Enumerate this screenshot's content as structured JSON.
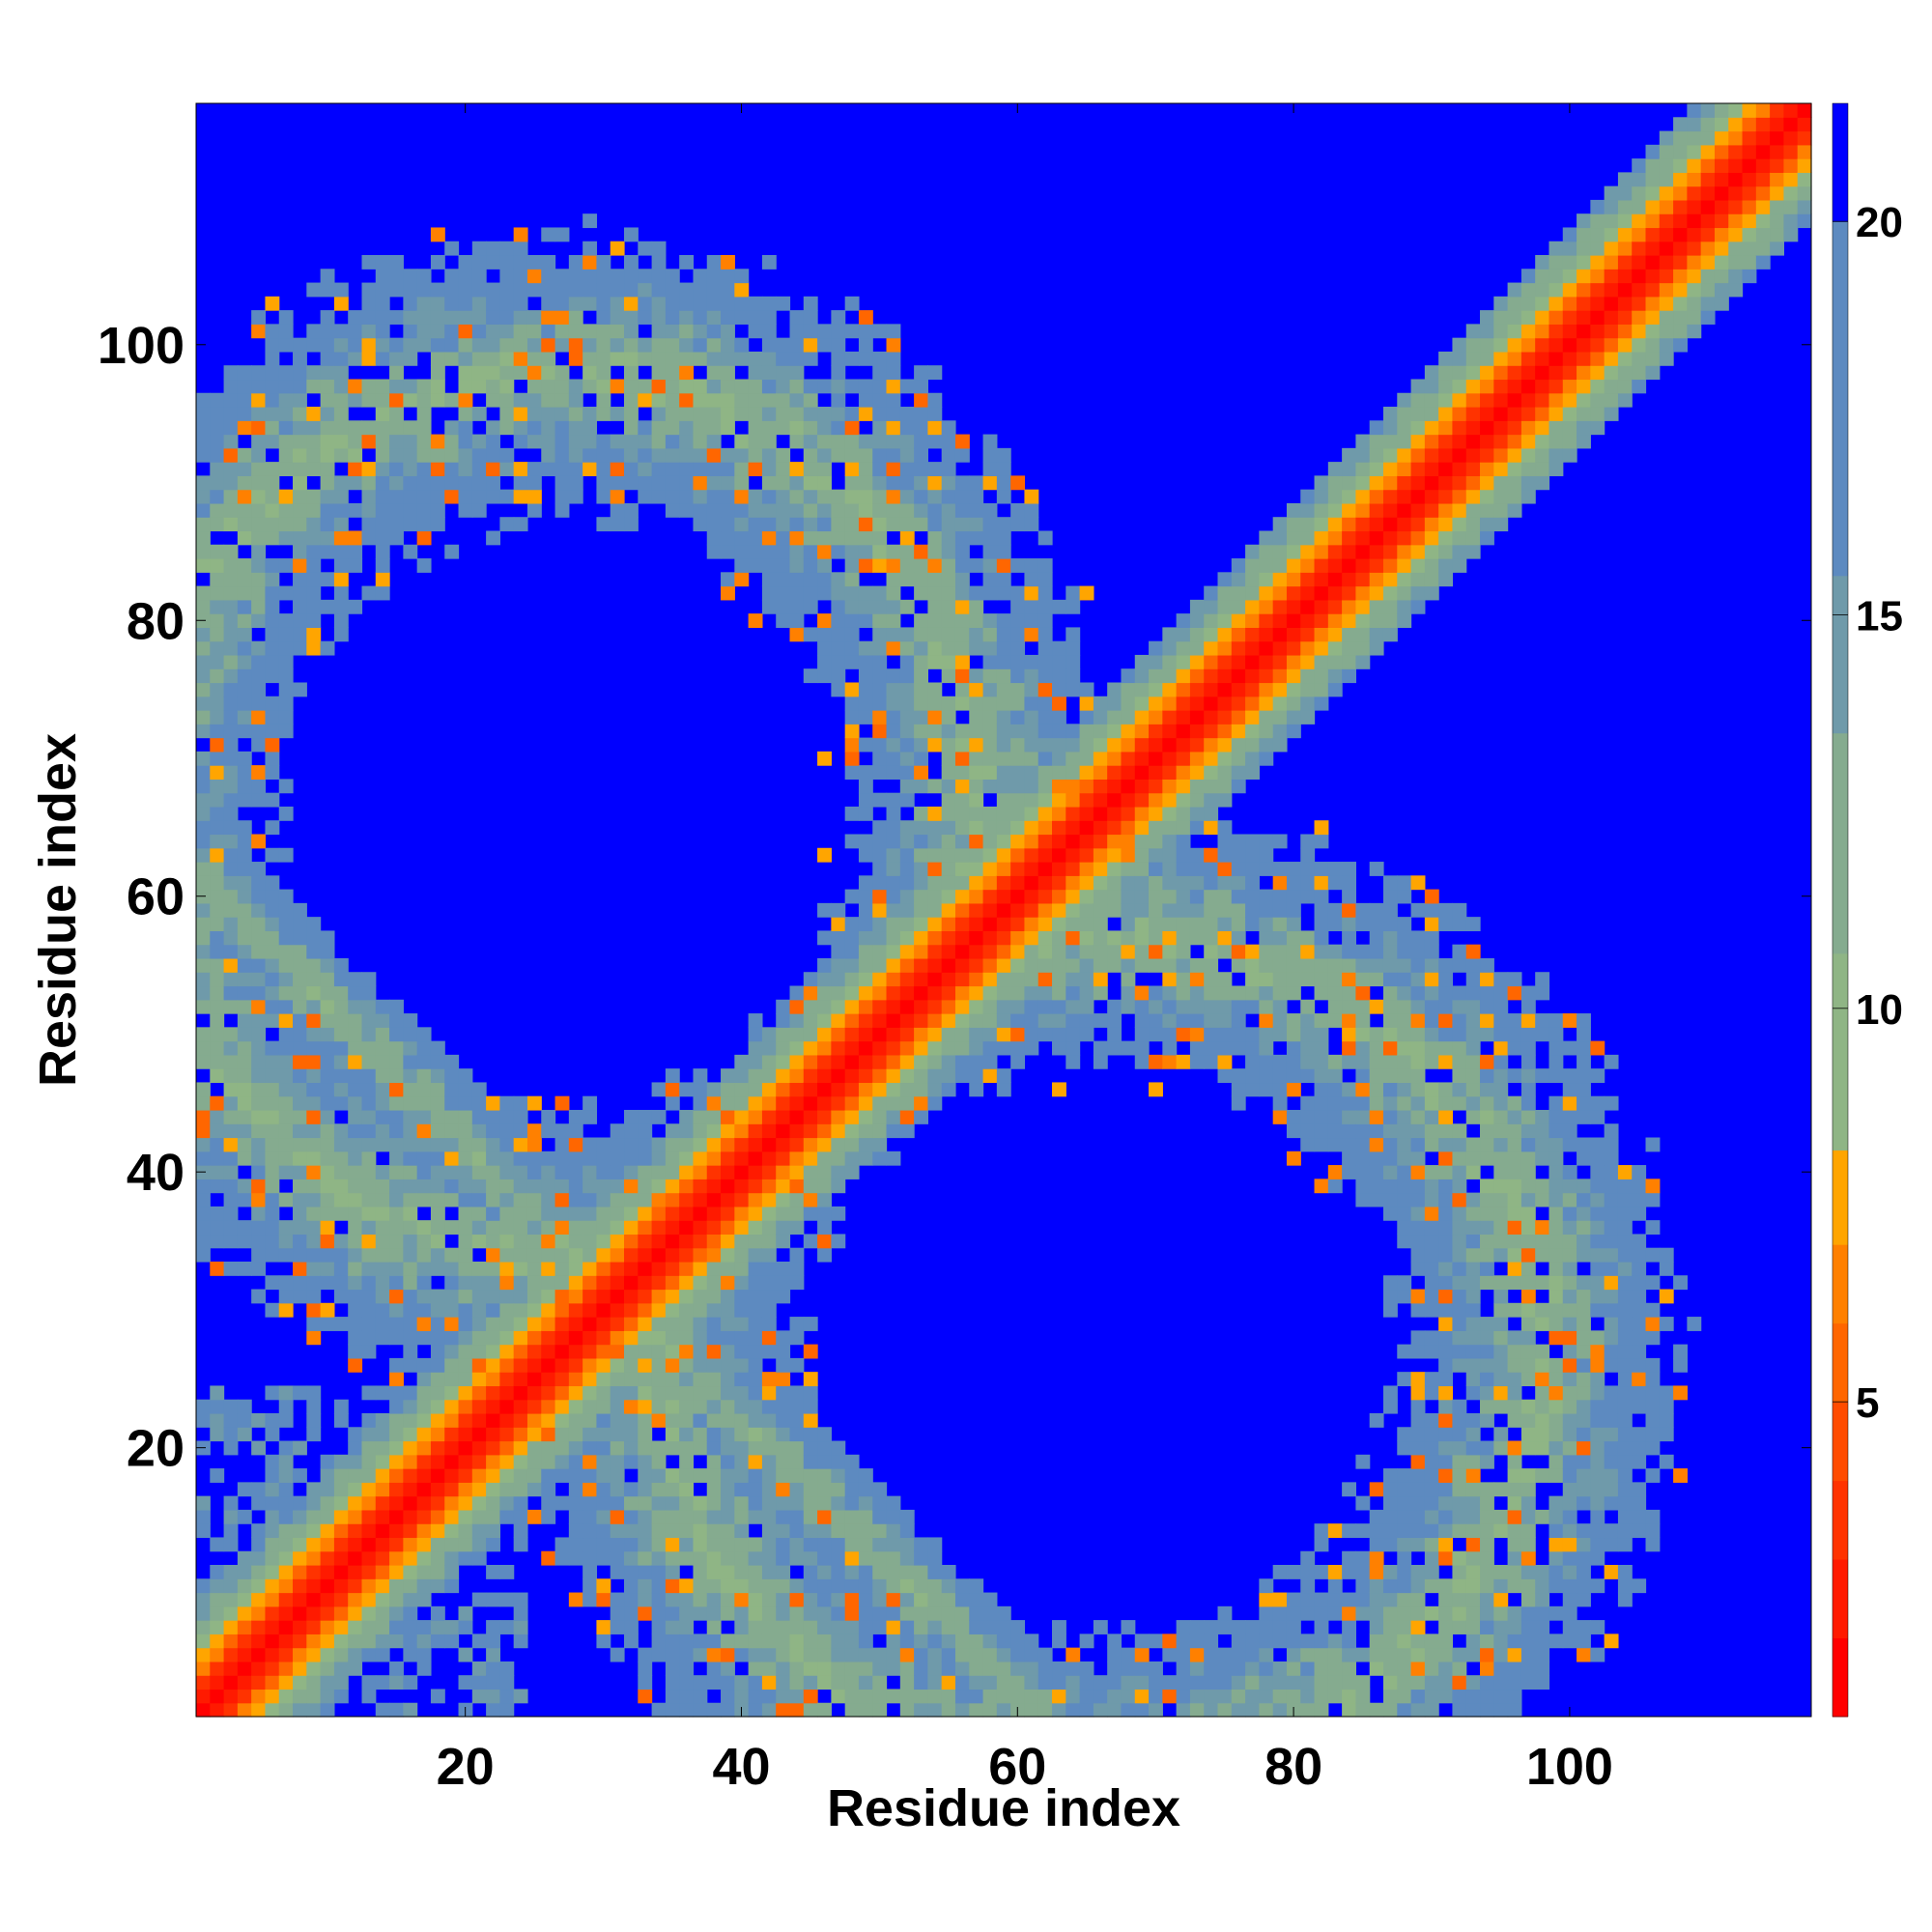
{
  "chart_data": {
    "type": "heatmap",
    "title": "",
    "xlabel": "Residue index",
    "ylabel": "Residue index",
    "n_residues": 117,
    "xlim": [
      1,
      117
    ],
    "ylim": [
      1,
      117
    ],
    "x_ticks": [
      20,
      40,
      60,
      80,
      100
    ],
    "y_ticks": [
      20,
      40,
      60,
      80,
      100
    ],
    "x_tick_labels": [
      "20",
      "40",
      "60",
      "80",
      "100"
    ],
    "y_tick_labels": [
      "20",
      "40",
      "60",
      "80",
      "100"
    ],
    "colorbar": {
      "range": [
        1,
        21.5
      ],
      "ticks": [
        5,
        10,
        15,
        20
      ],
      "tick_labels": [
        "5",
        "10",
        "15",
        "20"
      ],
      "placement": "right",
      "colors": [
        "#ff0000",
        "#ff1a00",
        "#ff3300",
        "#ff4c00",
        "#ff6600",
        "#ff8000",
        "#ffa500",
        "#8fb585",
        "#85ab8f",
        "#6f9aaa",
        "#5d8ac0",
        "#0000ff"
      ],
      "bounds": [
        1,
        2,
        3,
        4,
        5,
        6,
        7,
        8.2,
        10.7,
        13.5,
        15.5,
        20,
        21.5
      ]
    },
    "cutoff_value": 20,
    "background_color": "#0000ff",
    "structure": {
      "diagonal_band_halfwidth": 8,
      "secondary_diagonal_contacts": "anti-parallel band from (1,60) to (32,30) and (60,1) to (117,~0); symmetric about main diagonal",
      "contact_lobes": [
        {
          "x_range": [
            1,
            50
          ],
          "y_range": [
            55,
            110
          ],
          "note": "upper-left lobe, mostly 10-20 with some 5-8 contacts"
        },
        {
          "x_range": [
            55,
            110
          ],
          "y_range": [
            1,
            50
          ],
          "note": "lower-right lobe, symmetric to upper-left"
        },
        {
          "x_range": [
            1,
            40
          ],
          "y_range": [
            1,
            60
          ],
          "note": "contacts around lower-left region"
        }
      ]
    }
  }
}
